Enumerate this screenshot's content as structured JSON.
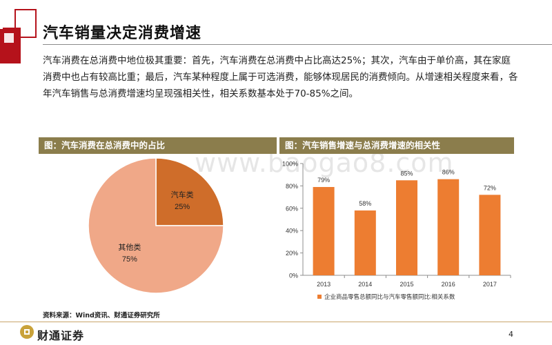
{
  "page": {
    "title": "汽车销量决定消费增速",
    "intro": "汽车消费在总消费中地位极其重要：首先，汽车消费在总消费中占比高达25%；其次，汽车由于单价高，其在家庭消费中也占有较高比重；最后，汽车某种程度上属于可选消费，能够体现居民的消费倾向。从增速相关程度来看，各年汽车销售与总消费增速均呈现强相关性，相关系数基本处于70-85%之间。",
    "watermark": "www.baogao8.com",
    "source": "资料来源：Wind资讯、财通证券研究所",
    "page_number": "4",
    "brand": "财通证券"
  },
  "colors": {
    "accent_red": "#b5121b",
    "pie_dark": "#cf6d2a",
    "pie_light": "#f0a888",
    "bar": "#ed7d31",
    "header_bg": "#8b7d4c"
  },
  "left_panel": {
    "header": "图：汽车消费在总消费中的占比"
  },
  "right_panel": {
    "header": "图：汽车销售增速与总消费增速的相关性"
  },
  "chart_data": [
    {
      "type": "pie",
      "title": "汽车消费在总消费中的占比",
      "slices": [
        {
          "label": "汽车类",
          "value": 25,
          "value_label": "25%"
        },
        {
          "label": "其他类",
          "value": 75,
          "value_label": "75%"
        }
      ]
    },
    {
      "type": "bar",
      "title": "汽车销售增速与总消费增速的相关性",
      "categories": [
        "2013",
        "2014",
        "2015",
        "2016",
        "2017"
      ],
      "values": [
        79,
        58,
        85,
        86,
        72
      ],
      "data_labels": [
        "79%",
        "58%",
        "85%",
        "86%",
        "72%"
      ],
      "ylim": [
        0,
        100
      ],
      "yticks": [
        "0%",
        "20%",
        "40%",
        "60%",
        "80%",
        "100%"
      ],
      "legend": "企业商品零售总额同比与汽车零售额同比:相关系数",
      "legend_position": "bottom"
    }
  ]
}
